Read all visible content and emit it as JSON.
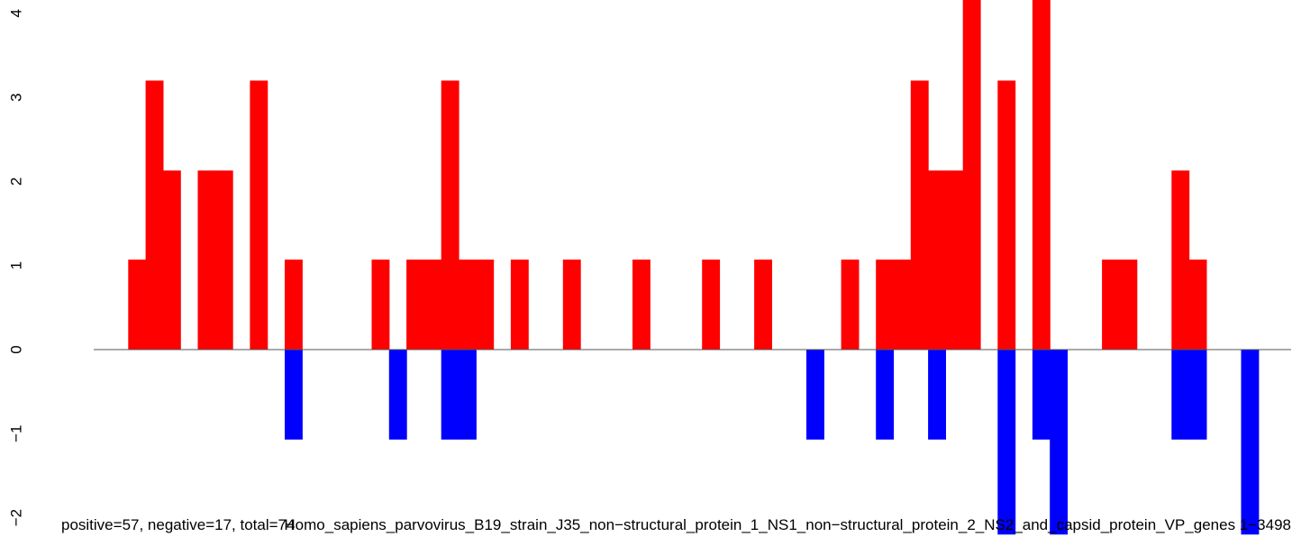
{
  "chart_data": {
    "type": "bar",
    "y_ticks": [
      "−2",
      "−1",
      "0",
      "1",
      "2",
      "3",
      "4"
    ],
    "ylim": [
      -2.1,
      4.2
    ],
    "bin_count": 68,
    "colors": {
      "positive": "#FF0000",
      "negative": "#0000FF",
      "baseline": "#555555"
    },
    "positive": [
      {
        "bin": 1,
        "value": 1.07
      },
      {
        "bin": 2,
        "value": 3.2
      },
      {
        "bin": 3,
        "value": 2.13
      },
      {
        "bin": 5,
        "value": 2.13
      },
      {
        "bin": 6,
        "value": 2.13
      },
      {
        "bin": 8,
        "value": 3.2
      },
      {
        "bin": 10,
        "value": 1.07
      },
      {
        "bin": 15,
        "value": 1.07
      },
      {
        "bin": 17,
        "value": 1.07
      },
      {
        "bin": 18,
        "value": 1.07
      },
      {
        "bin": 19,
        "value": 3.2
      },
      {
        "bin": 20,
        "value": 1.07
      },
      {
        "bin": 21,
        "value": 1.07
      },
      {
        "bin": 23,
        "value": 1.07
      },
      {
        "bin": 26,
        "value": 1.07
      },
      {
        "bin": 30,
        "value": 1.07
      },
      {
        "bin": 34,
        "value": 1.07
      },
      {
        "bin": 37,
        "value": 1.07
      },
      {
        "bin": 42,
        "value": 1.07
      },
      {
        "bin": 44,
        "value": 1.07
      },
      {
        "bin": 45,
        "value": 1.07
      },
      {
        "bin": 46,
        "value": 3.2
      },
      {
        "bin": 47,
        "value": 2.13
      },
      {
        "bin": 48,
        "value": 2.13
      },
      {
        "bin": 49,
        "value": 4.3
      },
      {
        "bin": 51,
        "value": 3.2
      },
      {
        "bin": 53,
        "value": 4.3
      },
      {
        "bin": 57,
        "value": 1.07
      },
      {
        "bin": 58,
        "value": 1.07
      },
      {
        "bin": 61,
        "value": 2.13
      },
      {
        "bin": 62,
        "value": 1.07
      }
    ],
    "negative": [
      {
        "bin": 10,
        "value": -1.07
      },
      {
        "bin": 16,
        "value": -1.07
      },
      {
        "bin": 19,
        "value": -1.07
      },
      {
        "bin": 20,
        "value": -1.07
      },
      {
        "bin": 40,
        "value": -1.07
      },
      {
        "bin": 44,
        "value": -1.07
      },
      {
        "bin": 47,
        "value": -1.07
      },
      {
        "bin": 51,
        "value": -2.2
      },
      {
        "bin": 53,
        "value": -1.07
      },
      {
        "bin": 54,
        "value": -2.2
      },
      {
        "bin": 61,
        "value": -1.07
      },
      {
        "bin": 62,
        "value": -1.07
      },
      {
        "bin": 65,
        "value": -2.2
      }
    ],
    "caption_overlap": "positive=57, negative=17, total=74",
    "caption_main": "Homo_sapiens_parvovirus_B19_strain_J35_non−structural_protein_1_NS1_non−structural_protein_2_NS2_and_capsid_protein_VP_genes 1−3498"
  }
}
